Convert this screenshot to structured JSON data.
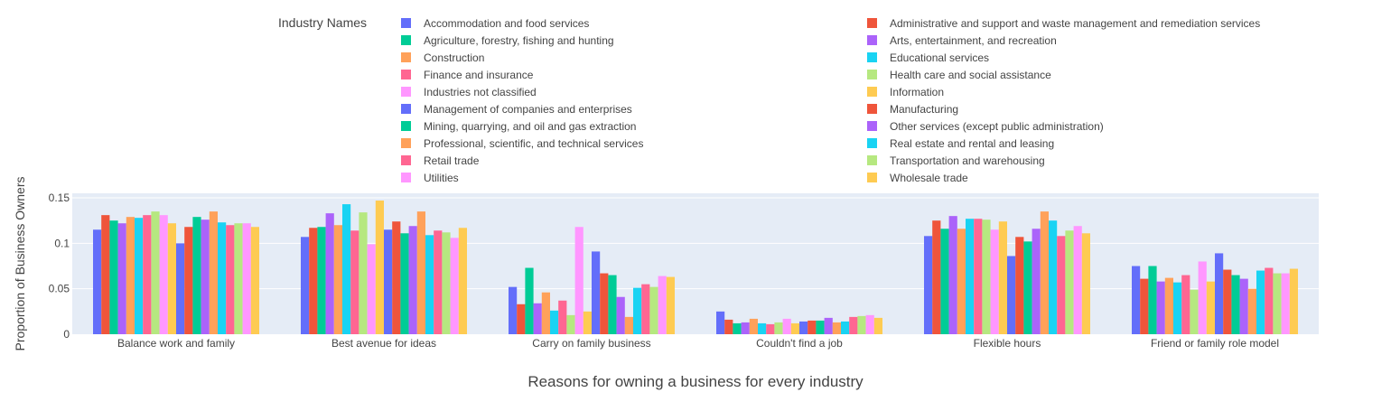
{
  "chart_data": {
    "type": "bar",
    "title": "",
    "xlabel": "Reasons for owning a business for every industry",
    "ylabel": "Proportion of Business Owners",
    "legend_title": "Industry Names",
    "legend_position": "top",
    "grid": true,
    "ylim": [
      0,
      0.155
    ],
    "yticks": [
      0,
      0.05,
      0.1,
      0.15
    ],
    "ytick_labels": [
      "0",
      "0.05",
      "0.1",
      "0.15"
    ],
    "categories": [
      "Balance work and family",
      "Best avenue for ideas",
      "Carry on family business",
      "Couldn't find a job",
      "Flexible hours",
      "Friend or family role model"
    ],
    "series": [
      {
        "name": "Accommodation and food services",
        "color": "#636efa",
        "values": [
          0.115,
          0.107,
          0.052,
          0.025,
          0.108,
          0.075
        ]
      },
      {
        "name": "Administrative and support and waste management and remediation services",
        "color": "#EF553B",
        "values": [
          0.131,
          0.117,
          0.033,
          0.016,
          0.125,
          0.061
        ]
      },
      {
        "name": "Agriculture, forestry, fishing and hunting",
        "color": "#00cc96",
        "values": [
          0.125,
          0.118,
          0.073,
          0.012,
          0.116,
          0.075
        ]
      },
      {
        "name": "Arts, entertainment, and recreation",
        "color": "#ab63fa",
        "values": [
          0.122,
          0.133,
          0.034,
          0.013,
          0.13,
          0.058
        ]
      },
      {
        "name": "Construction",
        "color": "#FFA15A",
        "values": [
          0.129,
          0.12,
          0.046,
          0.017,
          0.116,
          0.062
        ]
      },
      {
        "name": "Educational services",
        "color": "#19d3f3",
        "values": [
          0.128,
          0.143,
          0.026,
          0.012,
          0.127,
          0.057
        ]
      },
      {
        "name": "Finance and insurance",
        "color": "#FF6692",
        "values": [
          0.131,
          0.114,
          0.037,
          0.011,
          0.127,
          0.065
        ]
      },
      {
        "name": "Health care and social assistance",
        "color": "#B6E880",
        "values": [
          0.135,
          0.134,
          0.021,
          0.013,
          0.126,
          0.049
        ]
      },
      {
        "name": "Industries not classified",
        "color": "#FF97FF",
        "values": [
          0.131,
          0.099,
          0.118,
          0.017,
          0.115,
          0.08
        ]
      },
      {
        "name": "Information",
        "color": "#FECB52",
        "values": [
          0.122,
          0.147,
          0.025,
          0.012,
          0.124,
          0.058
        ]
      },
      {
        "name": "Management of companies and enterprises",
        "color": "#636efa",
        "values": [
          0.1,
          0.115,
          0.091,
          0.014,
          0.086,
          0.089
        ]
      },
      {
        "name": "Manufacturing",
        "color": "#EF553B",
        "values": [
          0.118,
          0.124,
          0.067,
          0.015,
          0.107,
          0.071
        ]
      },
      {
        "name": "Mining, quarrying, and oil and gas extraction",
        "color": "#00cc96",
        "values": [
          0.129,
          0.111,
          0.065,
          0.015,
          0.102,
          0.065
        ]
      },
      {
        "name": "Other services (except public administration)",
        "color": "#ab63fa",
        "values": [
          0.126,
          0.119,
          0.041,
          0.018,
          0.116,
          0.061
        ]
      },
      {
        "name": "Professional, scientific, and technical services",
        "color": "#FFA15A",
        "values": [
          0.135,
          0.135,
          0.019,
          0.013,
          0.135,
          0.05
        ]
      },
      {
        "name": "Real estate and rental and leasing",
        "color": "#19d3f3",
        "values": [
          0.123,
          0.109,
          0.051,
          0.014,
          0.125,
          0.07
        ]
      },
      {
        "name": "Retail trade",
        "color": "#FF6692",
        "values": [
          0.12,
          0.114,
          0.055,
          0.019,
          0.108,
          0.073
        ]
      },
      {
        "name": "Transportation and warehousing",
        "color": "#B6E880",
        "values": [
          0.122,
          0.112,
          0.052,
          0.02,
          0.114,
          0.067
        ]
      },
      {
        "name": "Utilities",
        "color": "#FF97FF",
        "values": [
          0.122,
          0.106,
          0.064,
          0.021,
          0.119,
          0.067
        ]
      },
      {
        "name": "Wholesale trade",
        "color": "#FECB52",
        "values": [
          0.118,
          0.117,
          0.063,
          0.018,
          0.111,
          0.072
        ]
      }
    ]
  }
}
